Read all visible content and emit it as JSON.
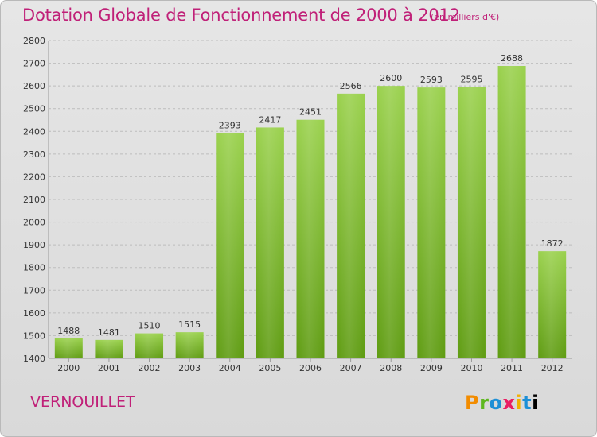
{
  "title": "Dotation Globale de Fonctionnement de 2000 à 2012",
  "subtitle": "(en milliers d'€)",
  "place": "VERNOUILLET",
  "logo": "Proxiti",
  "colors": {
    "title": "#c02078",
    "bar_light": "#9ad14d",
    "bar_dark": "#5f9c12",
    "grid": "#bdbdbd"
  },
  "chart_data": {
    "type": "bar",
    "categories": [
      "2000",
      "2001",
      "2002",
      "2003",
      "2004",
      "2005",
      "2006",
      "2007",
      "2008",
      "2009",
      "2010",
      "2011",
      "2012"
    ],
    "values": [
      1488,
      1481,
      1510,
      1515,
      2393,
      2417,
      2451,
      2566,
      2600,
      2593,
      2595,
      2688,
      1872
    ],
    "ylim": [
      1400,
      2800
    ],
    "yticks": [
      1400,
      1500,
      1600,
      1700,
      1800,
      1900,
      2000,
      2100,
      2200,
      2300,
      2400,
      2500,
      2600,
      2700,
      2800
    ],
    "grid": true,
    "xlabel": "",
    "ylabel": ""
  }
}
